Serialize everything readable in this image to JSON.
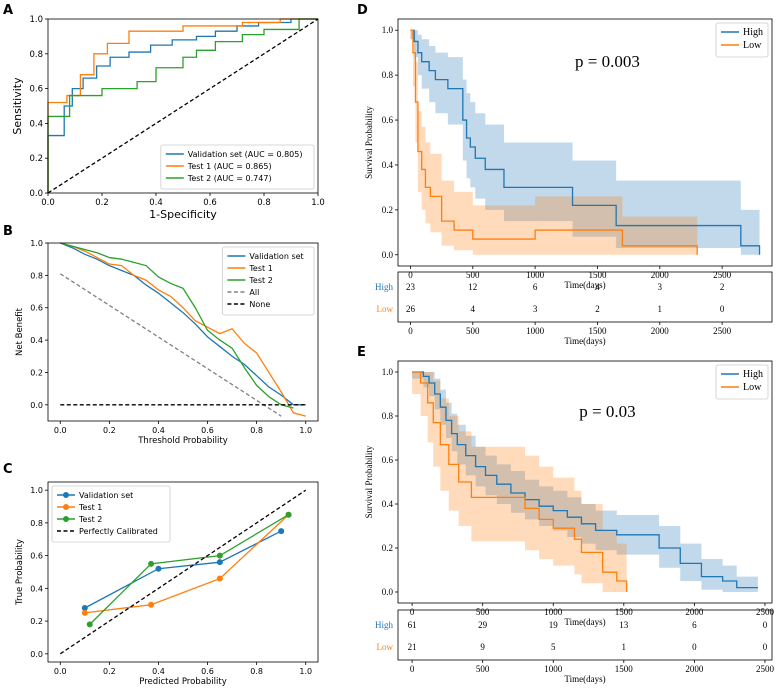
{
  "colors": {
    "blue": "#1f77b4",
    "orange": "#ff7f0e",
    "green": "#2ca02c",
    "gray": "#808080",
    "black": "#000000"
  },
  "chart_data": [
    {
      "panel": "A",
      "type": "line",
      "title": "",
      "xlabel": "1-Specificity",
      "ylabel": "Sensitivity",
      "xlim": [
        0,
        1
      ],
      "ylim": [
        0,
        1
      ],
      "xticks": [
        "0.0",
        "0.2",
        "0.4",
        "0.6",
        "0.8",
        "1.0"
      ],
      "yticks": [
        "0.0",
        "0.2",
        "0.4",
        "0.6",
        "0.8",
        "1.0"
      ],
      "legend_position": "lower-right",
      "series": [
        {
          "name": "Validation set (AUC = 0.805)",
          "color": "blue",
          "style": "step",
          "x": [
            0,
            0,
            0.06,
            0.06,
            0.09,
            0.09,
            0.13,
            0.13,
            0.18,
            0.18,
            0.23,
            0.23,
            0.3,
            0.3,
            0.38,
            0.38,
            0.46,
            0.46,
            0.55,
            0.55,
            0.62,
            0.62,
            0.7,
            0.7,
            0.78,
            0.78,
            0.9,
            0.9,
            1.0
          ],
          "y": [
            0,
            0.33,
            0.33,
            0.5,
            0.5,
            0.6,
            0.6,
            0.66,
            0.66,
            0.73,
            0.73,
            0.78,
            0.78,
            0.81,
            0.81,
            0.85,
            0.85,
            0.88,
            0.88,
            0.9,
            0.9,
            0.93,
            0.93,
            0.96,
            0.96,
            0.98,
            0.98,
            1.0,
            1.0
          ]
        },
        {
          "name": "Test 1 (AUC = 0.865)",
          "color": "orange",
          "style": "step",
          "x": [
            0,
            0,
            0.07,
            0.07,
            0.12,
            0.12,
            0.17,
            0.17,
            0.22,
            0.22,
            0.3,
            0.3,
            0.5,
            0.5,
            0.72,
            0.72,
            0.86,
            0.86,
            1.0
          ],
          "y": [
            0,
            0.52,
            0.52,
            0.56,
            0.56,
            0.68,
            0.68,
            0.8,
            0.8,
            0.86,
            0.86,
            0.93,
            0.93,
            0.96,
            0.96,
            0.98,
            0.98,
            1.0,
            1.0
          ]
        },
        {
          "name": "Test 2 (AUC = 0.747)",
          "color": "green",
          "style": "step",
          "x": [
            0,
            0,
            0.08,
            0.08,
            0.2,
            0.2,
            0.33,
            0.33,
            0.4,
            0.4,
            0.5,
            0.5,
            0.55,
            0.55,
            0.62,
            0.62,
            0.72,
            0.72,
            0.8,
            0.8,
            0.93,
            0.93,
            1.0
          ],
          "y": [
            0,
            0.44,
            0.44,
            0.56,
            0.56,
            0.6,
            0.6,
            0.64,
            0.64,
            0.72,
            0.72,
            0.78,
            0.78,
            0.82,
            0.82,
            0.87,
            0.87,
            0.91,
            0.91,
            0.94,
            0.94,
            1.0,
            1.0
          ]
        },
        {
          "name": "",
          "color": "black",
          "style": "dashed",
          "x": [
            0,
            1
          ],
          "y": [
            0,
            1
          ]
        }
      ]
    },
    {
      "panel": "B",
      "type": "line",
      "xlabel": "Threshold Probability",
      "ylabel": "Net Benefit",
      "xlim": [
        -0.05,
        1.05
      ],
      "ylim": [
        -0.1,
        1.0
      ],
      "xticks": [
        "0.0",
        "0.2",
        "0.4",
        "0.6",
        "0.8",
        "1.0"
      ],
      "yticks": [
        "0.0",
        "0.2",
        "0.4",
        "0.6",
        "0.8",
        "1.0"
      ],
      "legend_position": "top-right",
      "series": [
        {
          "name": "Validation set",
          "color": "blue",
          "style": "solid",
          "x": [
            0,
            0.05,
            0.1,
            0.15,
            0.2,
            0.25,
            0.3,
            0.35,
            0.4,
            0.45,
            0.5,
            0.55,
            0.6,
            0.65,
            0.7,
            0.75,
            0.8,
            0.85,
            0.9,
            0.95,
            1.0
          ],
          "y": [
            1.0,
            0.97,
            0.93,
            0.9,
            0.86,
            0.83,
            0.8,
            0.74,
            0.69,
            0.63,
            0.57,
            0.5,
            0.42,
            0.36,
            0.3,
            0.25,
            0.18,
            0.11,
            0.06,
            0.0,
            0.0
          ]
        },
        {
          "name": "Test 1",
          "color": "orange",
          "style": "solid",
          "x": [
            0,
            0.05,
            0.1,
            0.15,
            0.2,
            0.25,
            0.3,
            0.35,
            0.4,
            0.45,
            0.5,
            0.55,
            0.6,
            0.65,
            0.7,
            0.75,
            0.8,
            0.85,
            0.9,
            0.95,
            1.0
          ],
          "y": [
            1.0,
            0.98,
            0.95,
            0.91,
            0.87,
            0.86,
            0.8,
            0.77,
            0.71,
            0.67,
            0.6,
            0.52,
            0.48,
            0.44,
            0.47,
            0.38,
            0.32,
            0.2,
            0.08,
            -0.05,
            -0.07
          ]
        },
        {
          "name": "Test 2",
          "color": "green",
          "style": "solid",
          "x": [
            0,
            0.05,
            0.1,
            0.15,
            0.2,
            0.25,
            0.3,
            0.35,
            0.4,
            0.45,
            0.5,
            0.55,
            0.6,
            0.65,
            0.7,
            0.75,
            0.8,
            0.85,
            0.9,
            0.95
          ],
          "y": [
            1.0,
            0.98,
            0.96,
            0.94,
            0.91,
            0.9,
            0.88,
            0.86,
            0.79,
            0.75,
            0.72,
            0.6,
            0.46,
            0.4,
            0.35,
            0.23,
            0.12,
            0.05,
            0.0,
            -0.02
          ]
        },
        {
          "name": "All",
          "color": "gray",
          "style": "dashed",
          "x": [
            0,
            0.9
          ],
          "y": [
            0.81,
            -0.07
          ]
        },
        {
          "name": "None",
          "color": "black",
          "style": "dashed",
          "x": [
            0,
            1.0
          ],
          "y": [
            0,
            0
          ]
        }
      ]
    },
    {
      "panel": "C",
      "type": "line",
      "xlabel": "Predicted Probability",
      "ylabel": "True Probability",
      "xlim": [
        -0.05,
        1.05
      ],
      "ylim": [
        -0.05,
        1.05
      ],
      "xticks": [
        "0.0",
        "0.2",
        "0.4",
        "0.6",
        "0.8",
        "1.0"
      ],
      "yticks": [
        "0.0",
        "0.2",
        "0.4",
        "0.6",
        "0.8",
        "1.0"
      ],
      "legend_position": "top-left",
      "series": [
        {
          "name": "Validation set",
          "color": "blue",
          "style": "markers",
          "x": [
            0.1,
            0.4,
            0.65,
            0.9
          ],
          "y": [
            0.28,
            0.52,
            0.56,
            0.75
          ]
        },
        {
          "name": "Test 1",
          "color": "orange",
          "style": "markers",
          "x": [
            0.1,
            0.37,
            0.65,
            0.93
          ],
          "y": [
            0.25,
            0.3,
            0.46,
            0.85
          ]
        },
        {
          "name": "Test 2",
          "color": "green",
          "style": "markers",
          "x": [
            0.12,
            0.37,
            0.65,
            0.93
          ],
          "y": [
            0.18,
            0.55,
            0.6,
            0.85
          ]
        },
        {
          "name": "Perfectly Calibrated",
          "color": "black",
          "style": "dashed",
          "x": [
            0,
            1
          ],
          "y": [
            0,
            1
          ]
        }
      ]
    },
    {
      "panel": "D",
      "type": "line",
      "annotation": "p = 0.003",
      "xlabel": "Time(days)",
      "ylabel": "Survival Probability",
      "xlim": [
        -100,
        2900
      ],
      "ylim": [
        -0.05,
        1.05
      ],
      "xticks": [
        "0",
        "500",
        "1000",
        "1500",
        "2000",
        "2500"
      ],
      "yticks": [
        "0.0",
        "0.2",
        "0.4",
        "0.6",
        "0.8",
        "1.0"
      ],
      "legend_position": "top-right",
      "series": [
        {
          "name": "High",
          "color": "blue",
          "style": "step",
          "x": [
            0,
            30,
            60,
            90,
            150,
            200,
            300,
            420,
            450,
            480,
            520,
            600,
            750,
            1000,
            1300,
            1650,
            2200,
            2650,
            2800
          ],
          "y": [
            1.0,
            0.95,
            0.9,
            0.86,
            0.82,
            0.78,
            0.74,
            0.6,
            0.52,
            0.48,
            0.43,
            0.38,
            0.3,
            0.3,
            0.22,
            0.13,
            0.13,
            0.04,
            0.0
          ],
          "lower": [
            0.96,
            0.88,
            0.8,
            0.74,
            0.68,
            0.63,
            0.58,
            0.42,
            0.34,
            0.3,
            0.25,
            0.2,
            0.15,
            0.15,
            0.08,
            0.03,
            0.03,
            0.0,
            0.0
          ],
          "upper": [
            1.0,
            1.0,
            0.98,
            0.96,
            0.93,
            0.9,
            0.88,
            0.78,
            0.72,
            0.68,
            0.63,
            0.58,
            0.5,
            0.5,
            0.42,
            0.33,
            0.33,
            0.2,
            0.2
          ]
        },
        {
          "name": "Low",
          "color": "orange",
          "style": "step",
          "x": [
            0,
            20,
            40,
            60,
            90,
            120,
            160,
            250,
            350,
            500,
            700,
            1000,
            1700,
            2300
          ],
          "y": [
            1.0,
            0.9,
            0.68,
            0.46,
            0.38,
            0.3,
            0.26,
            0.15,
            0.11,
            0.07,
            0.07,
            0.11,
            0.04,
            0.0
          ],
          "lower": [
            0.96,
            0.75,
            0.5,
            0.28,
            0.2,
            0.14,
            0.1,
            0.04,
            0.02,
            0.0,
            0.0,
            0.0,
            0.0,
            0.0
          ],
          "upper": [
            1.0,
            1.0,
            0.86,
            0.64,
            0.57,
            0.5,
            0.45,
            0.33,
            0.28,
            0.22,
            0.22,
            0.26,
            0.17,
            0.17
          ]
        }
      ],
      "risk_table": {
        "times": [
          "0",
          "500",
          "1000",
          "1500",
          "2000",
          "2500"
        ],
        "xlabel": "Time(days)",
        "rows": [
          {
            "label": "High",
            "color": "blue",
            "counts": [
              "23",
              "12",
              "6",
              "4",
              "3",
              "2"
            ]
          },
          {
            "label": "Low",
            "color": "orange",
            "counts": [
              "26",
              "4",
              "3",
              "2",
              "1",
              "0"
            ]
          }
        ]
      }
    },
    {
      "panel": "E",
      "type": "line",
      "annotation": "p = 0.03",
      "xlabel": "Time(days)",
      "ylabel": "Survival Probability",
      "xlim": [
        -100,
        2550
      ],
      "ylim": [
        -0.05,
        1.05
      ],
      "xticks": [
        "0",
        "500",
        "1000",
        "1500",
        "2000",
        "2500"
      ],
      "yticks": [
        "0.0",
        "0.2",
        "0.4",
        "0.6",
        "0.8",
        "1.0"
      ],
      "legend_position": "top-right",
      "series": [
        {
          "name": "High",
          "color": "blue",
          "style": "step",
          "x": [
            0,
            80,
            120,
            160,
            200,
            240,
            280,
            320,
            380,
            450,
            520,
            600,
            700,
            800,
            900,
            1000,
            1100,
            1200,
            1300,
            1450,
            1600,
            1750,
            1900,
            2050,
            2200,
            2300,
            2450
          ],
          "y": [
            1.0,
            0.98,
            0.95,
            0.9,
            0.84,
            0.78,
            0.72,
            0.67,
            0.62,
            0.57,
            0.53,
            0.49,
            0.45,
            0.42,
            0.39,
            0.37,
            0.34,
            0.31,
            0.28,
            0.26,
            0.26,
            0.2,
            0.13,
            0.07,
            0.05,
            0.02,
            0.02
          ],
          "lower": [
            0.97,
            0.93,
            0.89,
            0.83,
            0.76,
            0.7,
            0.64,
            0.58,
            0.53,
            0.48,
            0.44,
            0.4,
            0.36,
            0.33,
            0.3,
            0.28,
            0.25,
            0.22,
            0.19,
            0.17,
            0.17,
            0.11,
            0.05,
            0.01,
            0.0,
            0.0,
            0.0
          ],
          "upper": [
            1.0,
            1.0,
            1.0,
            0.97,
            0.92,
            0.86,
            0.81,
            0.76,
            0.71,
            0.66,
            0.62,
            0.58,
            0.55,
            0.51,
            0.48,
            0.46,
            0.43,
            0.4,
            0.37,
            0.35,
            0.35,
            0.3,
            0.22,
            0.15,
            0.12,
            0.07,
            0.07
          ]
        },
        {
          "name": "Low",
          "color": "orange",
          "style": "step",
          "x": [
            0,
            60,
            110,
            150,
            200,
            260,
            330,
            420,
            600,
            800,
            900,
            1000,
            1150,
            1200,
            1350,
            1450,
            1520
          ],
          "y": [
            1.0,
            0.95,
            0.86,
            0.77,
            0.67,
            0.58,
            0.5,
            0.43,
            0.43,
            0.38,
            0.33,
            0.29,
            0.24,
            0.18,
            0.09,
            0.05,
            0.0
          ],
          "lower": [
            0.9,
            0.8,
            0.68,
            0.57,
            0.46,
            0.37,
            0.3,
            0.23,
            0.23,
            0.19,
            0.15,
            0.12,
            0.08,
            0.04,
            0.0,
            0.0,
            0.0
          ],
          "upper": [
            1.0,
            1.0,
            1.0,
            0.96,
            0.88,
            0.8,
            0.73,
            0.66,
            0.66,
            0.62,
            0.57,
            0.52,
            0.46,
            0.4,
            0.28,
            0.22,
            0.2
          ]
        }
      ],
      "risk_table": {
        "times": [
          "0",
          "500",
          "1000",
          "1500",
          "2000",
          "2500"
        ],
        "xlabel": "Time(days)",
        "rows": [
          {
            "label": "High",
            "color": "blue",
            "counts": [
              "61",
              "29",
              "19",
              "13",
              "6",
              "0"
            ]
          },
          {
            "label": "Low",
            "color": "orange",
            "counts": [
              "21",
              "9",
              "5",
              "1",
              "0",
              "0"
            ]
          }
        ]
      }
    }
  ]
}
